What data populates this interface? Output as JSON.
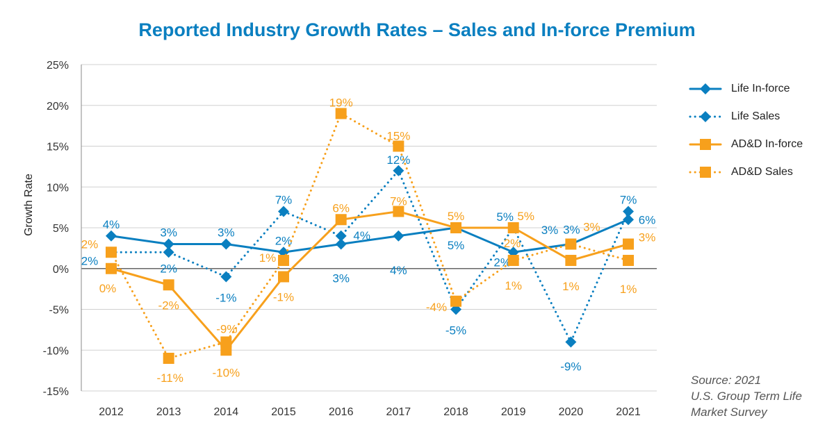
{
  "chart_data": {
    "type": "line",
    "title": "Reported Industry Growth Rates – Sales and In-force Premium",
    "ylabel": "Growth Rate",
    "xlabel": "",
    "categories": [
      "2012",
      "2013",
      "2014",
      "2015",
      "2016",
      "2017",
      "2018",
      "2019",
      "2020",
      "2021"
    ],
    "ylim": [
      -15,
      25
    ],
    "yticks": [
      "-15%",
      "-10%",
      "-5%",
      "0%",
      "5%",
      "10%",
      "15%",
      "20%",
      "25%"
    ],
    "ytick_values": [
      -15,
      -10,
      -5,
      0,
      5,
      10,
      15,
      20,
      25
    ],
    "grid": true,
    "legend_position": "right",
    "series": [
      {
        "name": "Life In-force",
        "color": "#0a7fc0",
        "style": "solid",
        "marker": "diamond",
        "values": [
          4,
          3,
          3,
          2,
          3,
          4,
          5,
          2,
          3,
          6
        ],
        "labels": [
          "4%",
          "3%",
          "3%",
          "2%",
          "3%",
          "4%",
          "5%",
          "2%",
          "3%",
          "6%"
        ]
      },
      {
        "name": "Life Sales",
        "color": "#0a7fc0",
        "style": "dotted",
        "marker": "diamond",
        "values": [
          2,
          2,
          -1,
          7,
          4,
          12,
          -5,
          5,
          -9,
          7
        ],
        "labels": [
          "2%",
          "2%",
          "-1%",
          "7%",
          "4%",
          "12%",
          "-5%",
          "5%",
          "-9%",
          "7%"
        ]
      },
      {
        "name": "AD&D In-force",
        "color": "#f7a01c",
        "style": "solid",
        "marker": "square",
        "values": [
          0,
          -2,
          -10,
          -1,
          6,
          7,
          5,
          5,
          1,
          3
        ],
        "labels": [
          "0%",
          "-2%",
          "-10%",
          "-1%",
          "6%",
          "7%",
          "5%",
          "5%",
          "1%",
          "3%"
        ]
      },
      {
        "name": "AD&D Sales",
        "color": "#f7a01c",
        "style": "dotted",
        "marker": "square",
        "values": [
          2,
          -11,
          -9,
          1,
          19,
          15,
          -4,
          1,
          3,
          1
        ],
        "labels": [
          "2%",
          "-11%",
          "-9%",
          "1%",
          "19%",
          "15%",
          "-4%",
          "1%",
          "3%",
          "1%"
        ]
      }
    ],
    "extra_labels": [
      {
        "text": "2%",
        "color": "#f7a01c",
        "category": "2019"
      },
      {
        "text": "3%",
        "color": "#0a7fc0",
        "category": "2020"
      }
    ]
  },
  "source": [
    "Source: 2021",
    "U.S. Group Term Life",
    "Market Survey"
  ]
}
